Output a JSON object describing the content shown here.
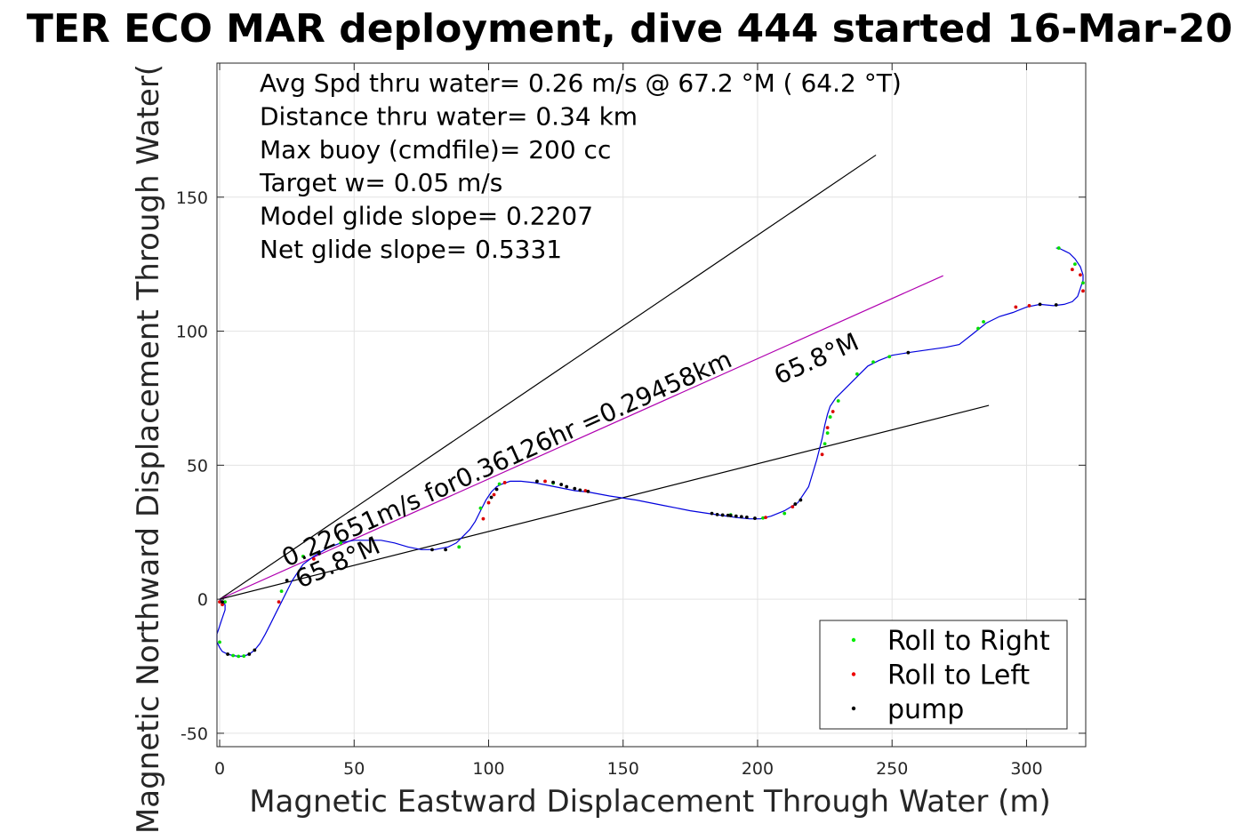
{
  "chart_data": {
    "type": "scatter",
    "title": "TER ECO MAR deployment, dive 444 started 16-Mar-20",
    "xlabel": "Magnetic Eastward Displacement Through Water (m)",
    "ylabel": "Magnetic Northward Displacement Through Water(",
    "xlim": [
      -1,
      322
    ],
    "ylim": [
      -55,
      200
    ],
    "xticks": [
      0,
      50,
      100,
      150,
      200,
      250,
      300
    ],
    "yticks": [
      -50,
      0,
      50,
      100,
      150
    ],
    "grid": true,
    "info_lines": [
      "Avg Spd thru water=  0.26 m/s @  67.2 °M ( 64.2 °T)",
      "Distance thru water=  0.34 km",
      "Max buoy (cmdfile)= 200 cc",
      "Target w= 0.05 m/s",
      "Model glide slope= 0.2207",
      "Net glide slope= 0.5331"
    ],
    "reference_lines": [
      {
        "color": "#000000",
        "x": [
          0,
          244
        ],
        "y": [
          0,
          165.7
        ]
      },
      {
        "color": "#b000b0",
        "x": [
          0,
          269
        ],
        "y": [
          0,
          120.7
        ]
      },
      {
        "color": "#000000",
        "x": [
          0,
          286
        ],
        "y": [
          0,
          72.3
        ]
      }
    ],
    "annotations": [
      {
        "text": "0.22651m/s for0.36126hr =0.29458km",
        "x": 25,
        "y": 12,
        "angle": -24.3
      },
      {
        "text": "65.8°M",
        "x": 30,
        "y": 4,
        "angle": -24.3
      },
      {
        "text": "65.8°M",
        "x": 208,
        "y": 80,
        "angle": -24.3
      }
    ],
    "track": {
      "name": "track",
      "color": "#0000dd",
      "x": [
        0,
        1,
        2,
        2,
        1,
        0,
        -1,
        -1,
        0,
        1,
        3,
        5,
        7,
        9,
        11,
        13,
        15,
        17,
        19,
        21,
        23,
        25,
        27,
        29,
        31,
        35,
        40,
        45,
        50,
        55,
        60,
        65,
        70,
        75,
        80,
        85,
        88,
        90,
        93,
        95,
        97,
        99,
        101,
        103,
        105,
        108,
        112,
        117,
        122,
        127,
        132,
        137,
        145,
        155,
        165,
        175,
        185,
        192,
        197,
        201,
        205,
        210,
        215,
        219,
        222,
        224,
        225,
        226,
        227,
        229,
        232,
        235,
        238,
        241,
        245,
        250,
        256,
        263,
        270,
        275,
        280,
        285,
        290,
        295,
        300,
        305,
        310,
        314,
        317,
        319,
        320,
        321,
        321,
        320,
        318,
        316,
        314,
        313,
        312,
        311
      ],
      "y": [
        0,
        -1,
        -2,
        -4,
        -7,
        -10,
        -13,
        -16,
        -18,
        -19.5,
        -20.5,
        -21,
        -21.3,
        -21.2,
        -20.5,
        -19,
        -16.5,
        -13,
        -9,
        -5,
        -1,
        3,
        7,
        10,
        13,
        16,
        19,
        21,
        22,
        22,
        22,
        21,
        19.5,
        18.5,
        18.5,
        19.5,
        21,
        23,
        26,
        29,
        33,
        37,
        40,
        42,
        43,
        44,
        44,
        43.5,
        42.5,
        41.5,
        40.5,
        40,
        38.5,
        37,
        35,
        33,
        31.5,
        30.5,
        30,
        30,
        31,
        33,
        36,
        42,
        52,
        60,
        65,
        69,
        72,
        75,
        78,
        81,
        84,
        87,
        89,
        91,
        92,
        93,
        94,
        95,
        99,
        103,
        105.5,
        107,
        109,
        110,
        109.5,
        110,
        111,
        113,
        116,
        119,
        121,
        124,
        127,
        129,
        130,
        130.5,
        131,
        131
      ]
    },
    "legend": {
      "location": "bottom-right",
      "entries": [
        {
          "label": "Roll to Right",
          "color": "#00ee00"
        },
        {
          "label": "Roll to Left",
          "color": "#ee0000"
        },
        {
          "label": "pump",
          "color": "#000000"
        }
      ]
    },
    "points": {
      "roll_right": {
        "color": "#00dd00",
        "x": [
          2,
          0,
          5,
          7,
          9,
          23,
          31,
          45,
          89,
          97,
          104,
          124,
          190,
          202,
          210,
          225,
          226,
          227,
          230,
          237,
          243,
          249,
          282,
          284,
          312,
          318,
          321
        ],
        "y": [
          -1,
          -16,
          -21,
          -21.3,
          -21.2,
          3,
          16,
          21,
          19.5,
          34,
          43,
          43.3,
          31.5,
          30.3,
          32,
          58,
          62,
          68,
          74,
          84,
          88.5,
          90.5,
          101,
          103.5,
          131,
          125,
          118
        ]
      },
      "roll_left": {
        "color": "#dd0000",
        "x": [
          0,
          1,
          22,
          35,
          98,
          100,
          102,
          106,
          121,
          136,
          203,
          213,
          224,
          226,
          228,
          296,
          301,
          317,
          320,
          321
        ],
        "y": [
          -1,
          -2,
          -1,
          15,
          30,
          36,
          39,
          43.5,
          44,
          40.5,
          30.5,
          34.5,
          54,
          64,
          70,
          109,
          109.5,
          123,
          121,
          115
        ]
      },
      "pump": {
        "color": "#000000",
        "x": [
          1,
          3,
          11,
          13,
          25,
          37,
          79,
          84,
          101,
          103,
          118,
          124,
          127,
          129,
          132,
          134,
          137,
          183,
          185,
          187,
          189,
          190,
          192,
          194,
          196,
          199,
          214,
          216,
          256,
          305,
          311
        ],
        "y": [
          -1,
          -20.5,
          -20.5,
          -19,
          7,
          17,
          18.5,
          18.5,
          38,
          41,
          44,
          43.6,
          42.8,
          42,
          41.3,
          40.7,
          40.2,
          32,
          31.6,
          31.4,
          31.3,
          31.2,
          31,
          30.8,
          30.6,
          30.2,
          35.5,
          37,
          92,
          110,
          109.8
        ]
      }
    }
  }
}
